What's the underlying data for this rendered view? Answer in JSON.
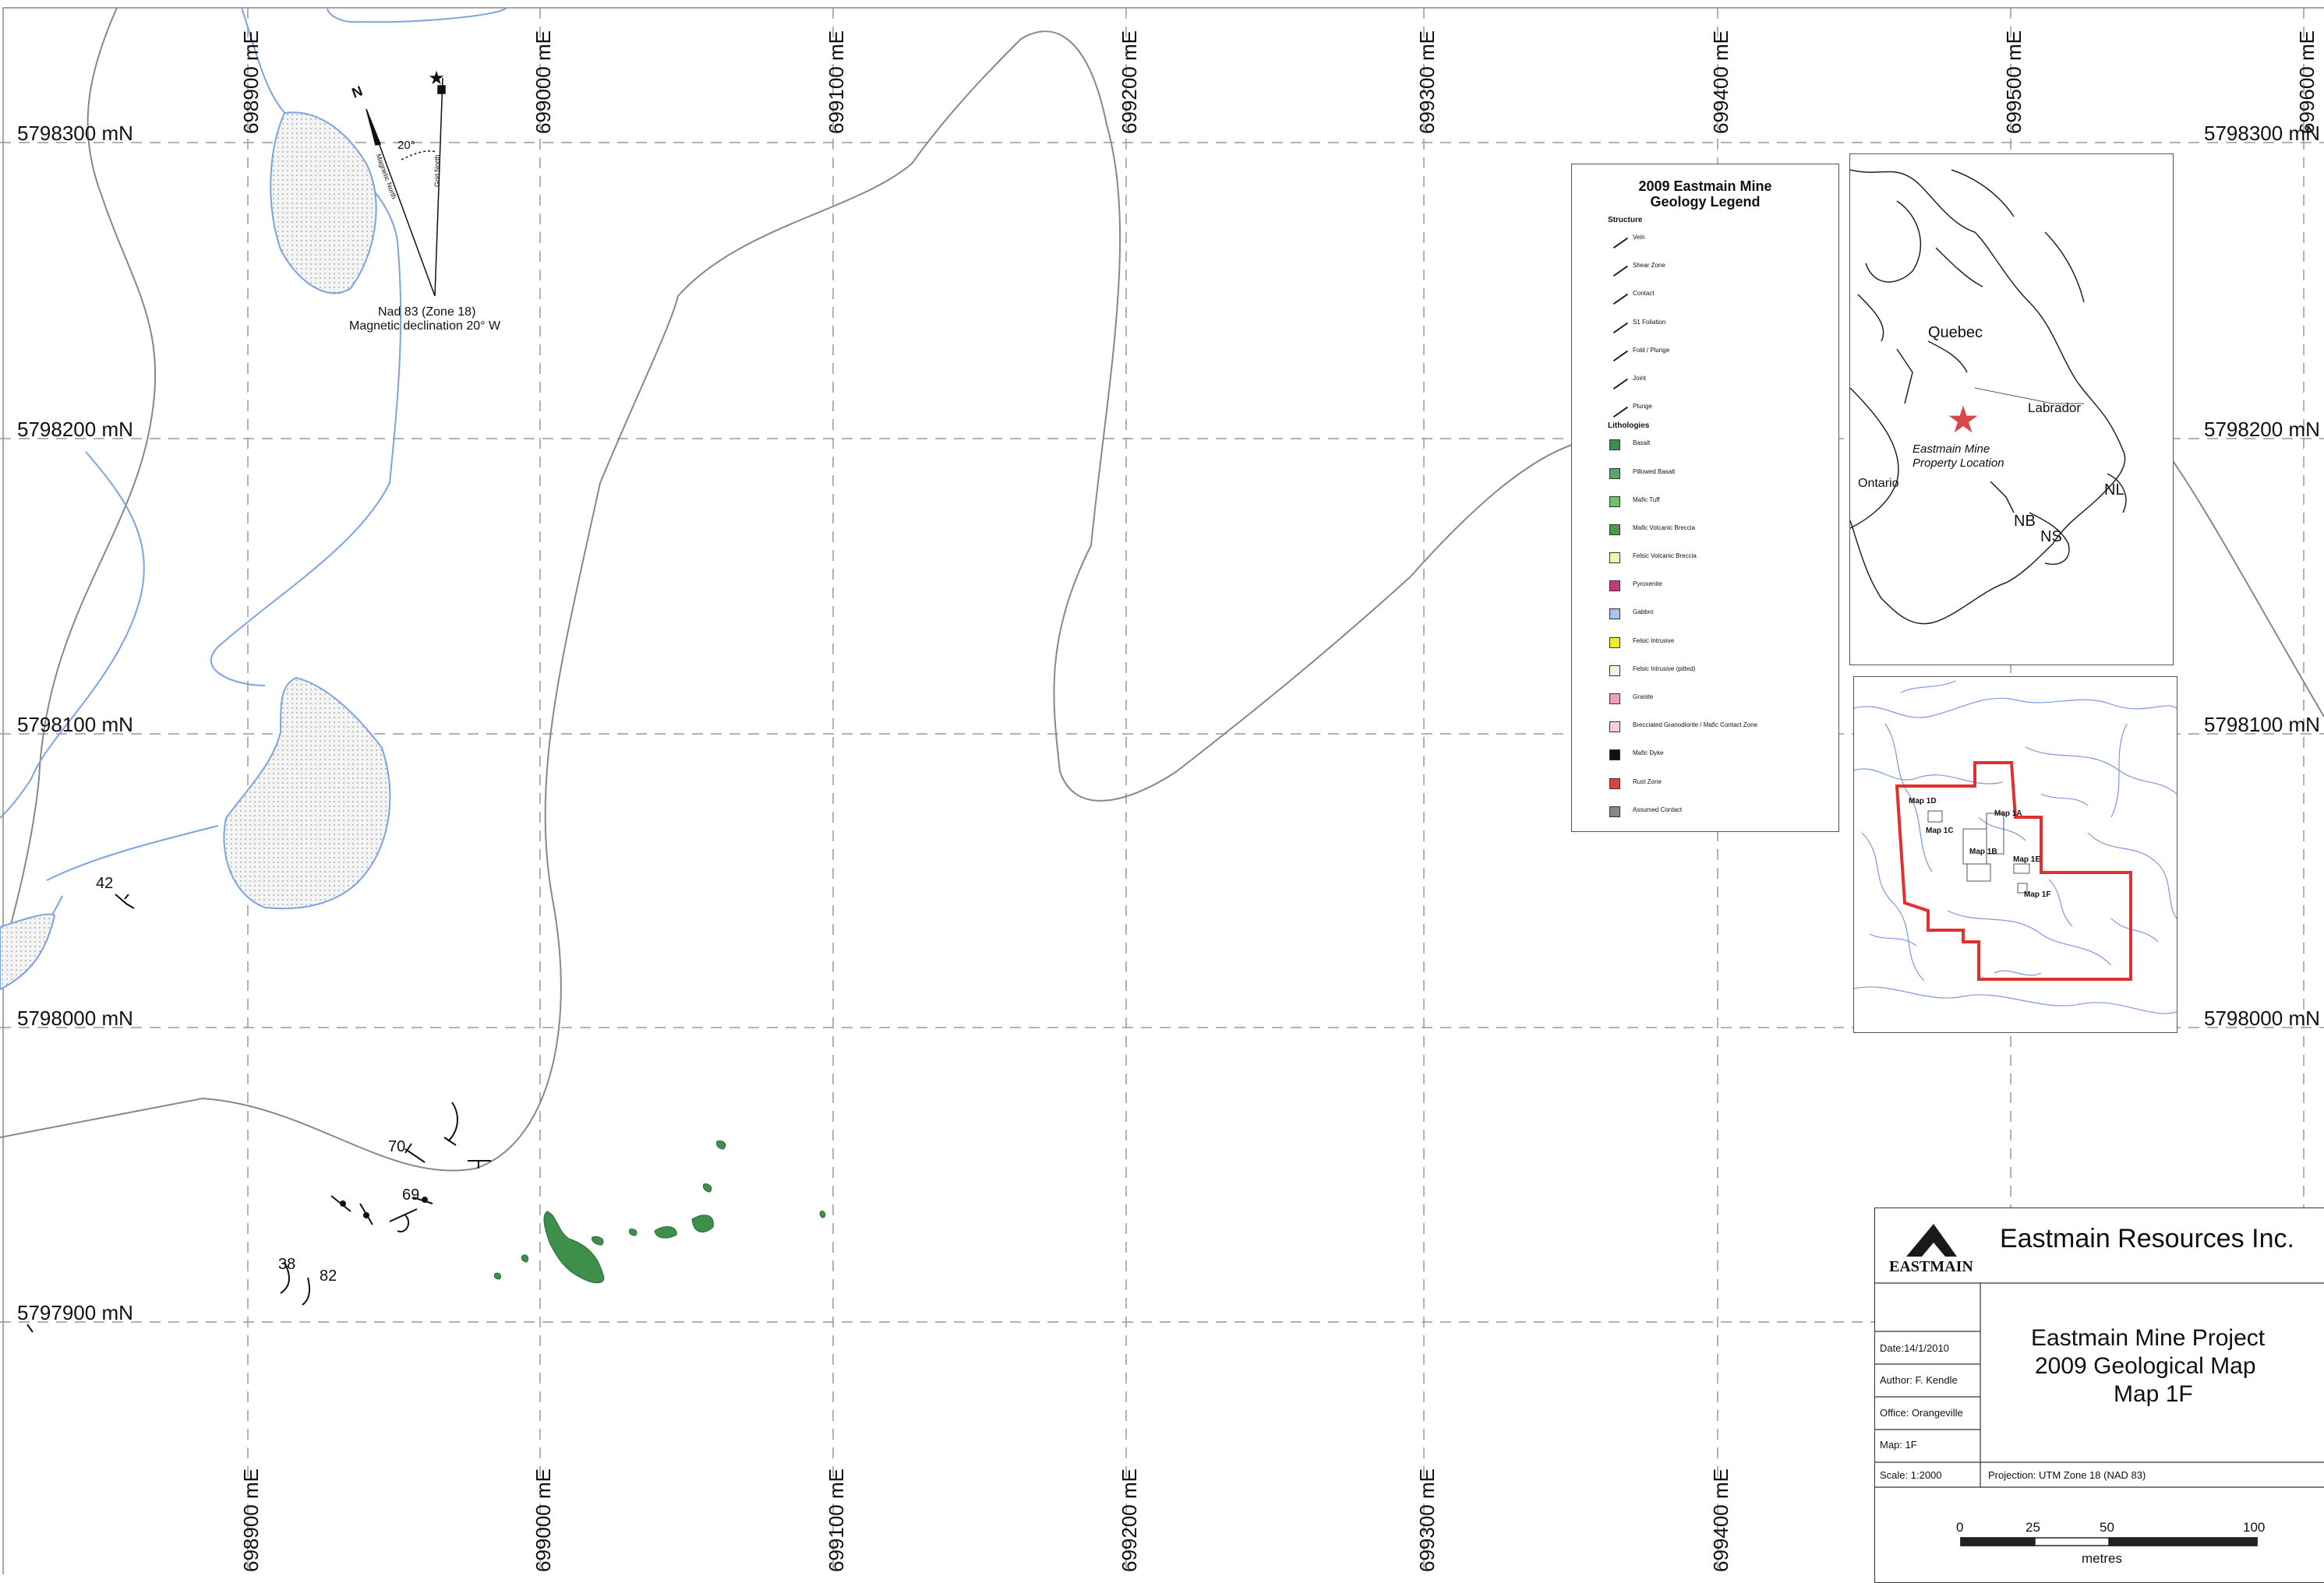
{
  "map": {
    "easting_labels": [
      "698900 mE",
      "699000 mE",
      "699100 mE",
      "699200 mE",
      "699300 mE",
      "699400 mE",
      "699500 mE",
      "699600 mE"
    ],
    "northing_labels": [
      "5798300 mN",
      "5798200 mN",
      "5798100 mN",
      "5798000 mN",
      "5797900 mN"
    ],
    "north_arrow": {
      "grid_north": "Grid North",
      "magnetic_north": "Magnetic North",
      "angle": "20°",
      "datum": "Nad 83 (Zone 18)",
      "declination": "Magnetic declination 20° W",
      "n_label": "N"
    },
    "structure_labels": [
      "42",
      "70",
      "69",
      "38",
      "82"
    ]
  },
  "legend": {
    "title": "2009 Eastmain Mine",
    "subtitle": "Geology Legend",
    "structure_heading": "Structure",
    "structures": [
      "Vein",
      "Shear Zone",
      "Contact",
      "S1 Foliation",
      "Fold / Plunge",
      "Joint",
      "Plunge"
    ],
    "lithology_heading": "Lithologies",
    "lithologies": [
      {
        "label": "Basalt",
        "color": "#3d8f4a"
      },
      {
        "label": "Pillowed Basalt",
        "color": "#55a86a"
      },
      {
        "label": "Mafic Tuff",
        "color": "#6bc36b"
      },
      {
        "label": "Mafic Volcanic Breccia",
        "color": "#4a9a4a"
      },
      {
        "label": "Felsic Volcanic Breccia",
        "color": "#f5f3b5"
      },
      {
        "label": "Pyroxenite",
        "color": "#c43a7a"
      },
      {
        "label": "Gabbro",
        "color": "#a9c4ea"
      },
      {
        "label": "Felsic Intrusive",
        "color": "#f0ea2a"
      },
      {
        "label": "Felsic Intrusive (pitted)",
        "color": "#f7f5dd"
      },
      {
        "label": "Granite",
        "color": "#f0a0b8"
      },
      {
        "label": "Brecciated Granodiorite / Mafic Contact Zone",
        "color": "#f7d0d8"
      },
      {
        "label": "Mafic Dyke",
        "color": "#111111"
      },
      {
        "label": "Rust Zone",
        "color": "#e04040"
      },
      {
        "label": "Assumed Contact",
        "color": "#888888"
      }
    ]
  },
  "location_inset": {
    "labels": [
      "Quebec",
      "Labrador",
      "Ontario",
      "NL",
      "NB",
      "NS"
    ],
    "property_line1": "Eastmain Mine",
    "property_line2": "Property Location",
    "star_color": "#d84848"
  },
  "index_inset": {
    "maps": [
      "Map 1D",
      "Map 1C",
      "Map 1A",
      "Map 1B",
      "Map 1E",
      "Map 1F"
    ],
    "boundary_color": "#e03030"
  },
  "title_block": {
    "company": "Eastmain Resources Inc.",
    "logo_text": "EASTMAIN",
    "project_line1": "Eastmain Mine Project",
    "project_line2": "2009 Geological Map",
    "project_line3": "Map 1F",
    "date": "Date:14/1/2010",
    "author": "Author: F. Kendle",
    "office": "Office: Orangeville",
    "map": "Map: 1F",
    "scale": "Scale: 1:2000",
    "projection": "Projection: UTM Zone 18 (NAD 83)",
    "scale_ticks": [
      "0",
      "25",
      "50",
      "100"
    ],
    "scale_unit": "metres"
  }
}
